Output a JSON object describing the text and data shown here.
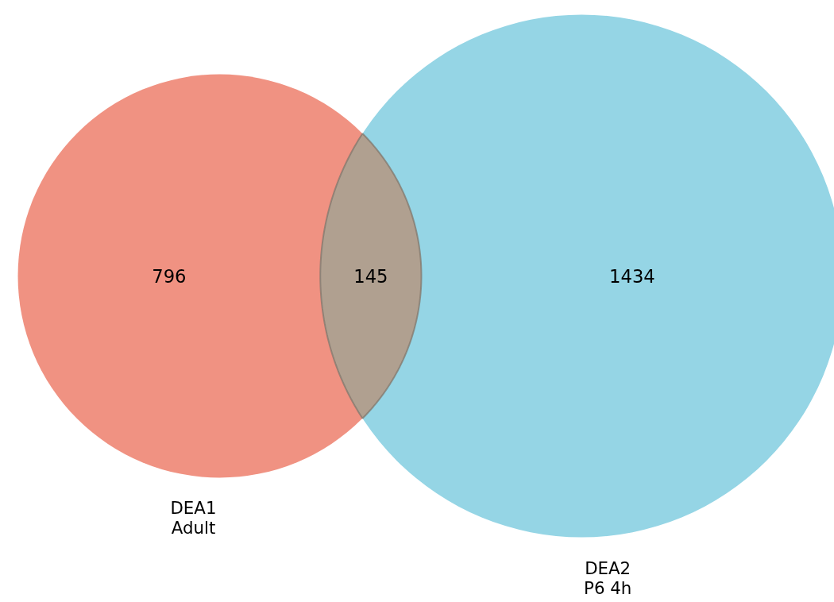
{
  "chart_data": {
    "type": "other",
    "categories": [
      "DEA1\nAdult",
      null,
      "DEA2\nP6 4h"
    ],
    "values": [
      796,
      145,
      1434
    ],
    "data_labels": true,
    "colors": [
      "#f09282",
      "#b0a090",
      "#95d5e5"
    ]
  }
}
